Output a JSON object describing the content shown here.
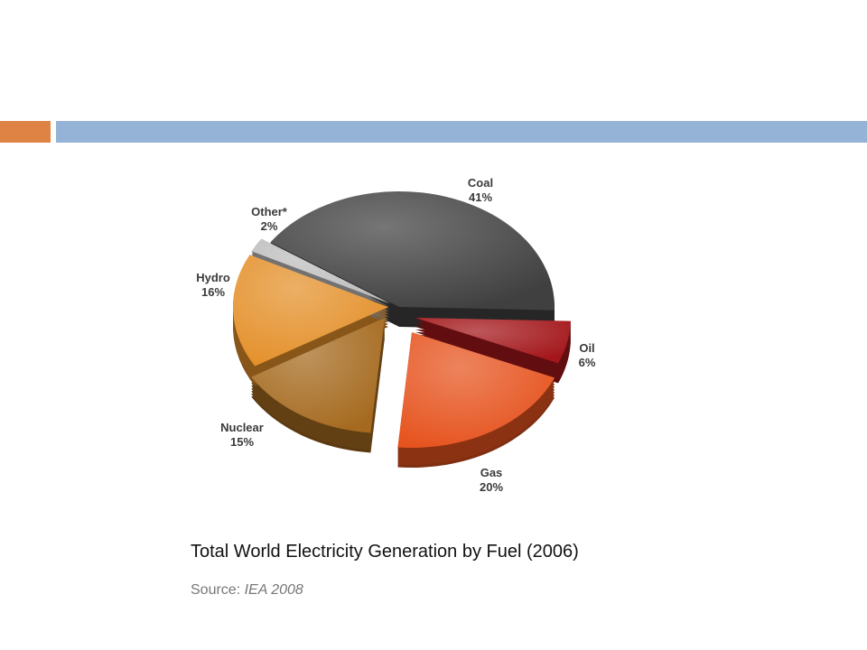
{
  "slide": {
    "accent_color": "#DE8344",
    "band_color": "#95B3D7"
  },
  "chart_data": {
    "type": "pie",
    "title": "Total World Electricity Generation by Fuel (2006)",
    "source_label": "Source:",
    "source_value": "IEA 2008",
    "slices": [
      {
        "label": "Coal",
        "percent_label": "41%",
        "value": 41,
        "color": "#404040"
      },
      {
        "label": "Oil",
        "percent_label": "6%",
        "value": 6,
        "color": "#A3161A"
      },
      {
        "label": "Gas",
        "percent_label": "20%",
        "value": 20,
        "color": "#E6531E"
      },
      {
        "label": "Nuclear",
        "percent_label": "15%",
        "value": 15,
        "color": "#A56A1F"
      },
      {
        "label": "Hydro",
        "percent_label": "16%",
        "value": 16,
        "color": "#E4902A"
      },
      {
        "label": "Other*",
        "percent_label": "2%",
        "value": 2,
        "color": "#BEBEBE"
      }
    ]
  }
}
